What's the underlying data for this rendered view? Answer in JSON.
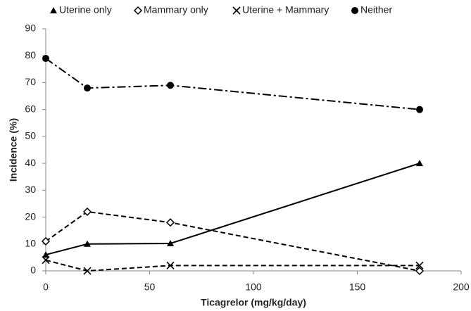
{
  "chart_data": {
    "type": "line",
    "x_label": "Ticagrelor (mg/kg/day)",
    "y_label": "Incidence (%)",
    "x": [
      0,
      20,
      60,
      180
    ],
    "series": [
      {
        "name": "Uterine only",
        "color": "#000000",
        "marker": "triangle",
        "dash": "solid",
        "values": [
          6,
          10,
          10.2,
          40
        ]
      },
      {
        "name": "Mammary only",
        "color": "#000000",
        "marker": "diamond-open",
        "dash": "dashed",
        "values": [
          11,
          22,
          18,
          0
        ]
      },
      {
        "name": "Uterine + Mammary",
        "color": "#000000",
        "marker": "cross",
        "dash": "dashed",
        "values": [
          4,
          0,
          2,
          2
        ]
      },
      {
        "name": "Neither",
        "color": "#000000",
        "marker": "circle",
        "dash": "dashdot",
        "values": [
          79,
          68,
          69,
          60
        ]
      }
    ],
    "xlim": [
      0,
      200
    ],
    "xticks": [
      0,
      50,
      100,
      150,
      200
    ],
    "ylim": [
      0,
      90
    ],
    "yticks": [
      0,
      10,
      20,
      30,
      40,
      50,
      60,
      70,
      80,
      90
    ],
    "grid": false,
    "legend": "top"
  }
}
